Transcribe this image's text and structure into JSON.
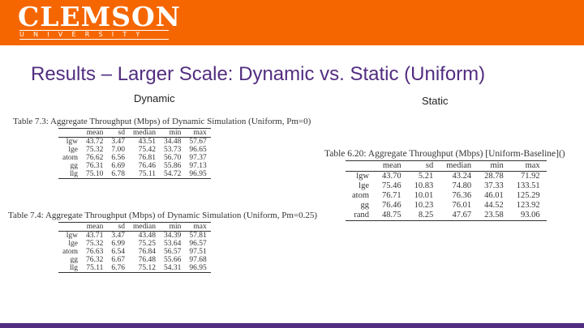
{
  "header": {
    "logo_text": "CLEMSON",
    "logo_sub": "UNIVERSITY",
    "bar_color": "#f56600",
    "footer_color": "#522d80"
  },
  "slide": {
    "title": "Results – Larger Scale: Dynamic vs. Static (Uniform)",
    "dynamic_label": "Dynamic",
    "static_label": "Static"
  },
  "tables": {
    "t1": {
      "caption": "Table 7.3: Aggregate Throughput (Mbps) of Dynamic Simulation (Uniform, Pm=0)",
      "columns": [
        "",
        "mean",
        "sd",
        "median",
        "min",
        "max"
      ],
      "rows": [
        [
          "lgw",
          "43.72",
          "3.47",
          "43.51",
          "34.48",
          "57.67"
        ],
        [
          "lge",
          "75.32",
          "7.00",
          "75.42",
          "53.73",
          "96.65"
        ],
        [
          "atom",
          "76.62",
          "6.56",
          "76.81",
          "56.70",
          "97.37"
        ],
        [
          "gg",
          "76.31",
          "6.69",
          "76.46",
          "55.86",
          "97.13"
        ],
        [
          "llg",
          "75.10",
          "6.78",
          "75.11",
          "54.72",
          "96.95"
        ]
      ]
    },
    "t2": {
      "caption": "Table 7.4: Aggregate Throughput (Mbps) of Dynamic Simulation (Uniform, Pm=0.25)",
      "columns": [
        "",
        "mean",
        "sd",
        "median",
        "min",
        "max"
      ],
      "rows": [
        [
          "lgw",
          "43.71",
          "3.47",
          "43.48",
          "34.39",
          "57.81"
        ],
        [
          "lge",
          "75.32",
          "6.99",
          "75.25",
          "53.64",
          "96.57"
        ],
        [
          "atom",
          "76.63",
          "6.54",
          "76.84",
          "56.57",
          "97.51"
        ],
        [
          "gg",
          "76.32",
          "6.67",
          "76.48",
          "55.66",
          "97.68"
        ],
        [
          "llg",
          "75.11",
          "6.76",
          "75.12",
          "54.31",
          "96.95"
        ]
      ]
    },
    "t3": {
      "caption": "Table 6.20: Aggregate Throughput (Mbps) [Uniform-Baseline]()",
      "columns": [
        "",
        "mean",
        "sd",
        "median",
        "min",
        "max"
      ],
      "rows": [
        [
          "lgw",
          "43.70",
          "5.21",
          "43.24",
          "28.78",
          "71.92"
        ],
        [
          "lge",
          "75.46",
          "10.83",
          "74.80",
          "37.33",
          "133.51"
        ],
        [
          "atom",
          "76.71",
          "10.01",
          "76.36",
          "46.01",
          "125.29"
        ],
        [
          "gg",
          "76.46",
          "10.23",
          "76.01",
          "44.52",
          "123.92"
        ],
        [
          "rand",
          "48.75",
          "8.25",
          "47.67",
          "23.58",
          "93.06"
        ]
      ]
    }
  }
}
